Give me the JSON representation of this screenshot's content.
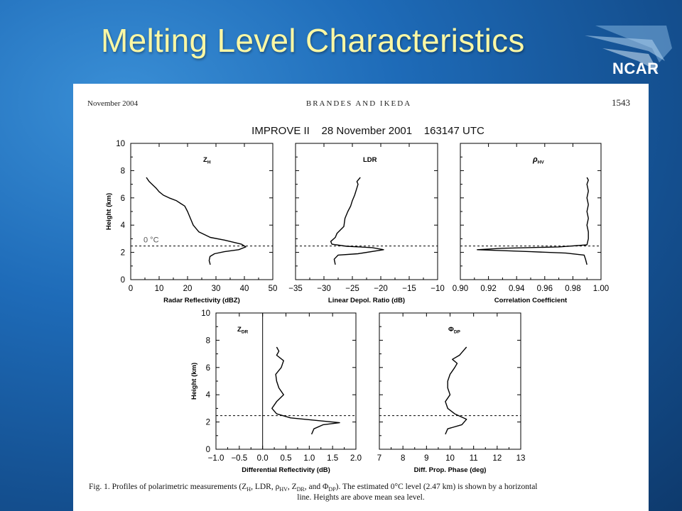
{
  "slide": {
    "title": "Melting Level Characteristics",
    "logo_text": "NCAR"
  },
  "paper": {
    "header_left": "November 2004",
    "header_center": "BRANDES AND IKEDA",
    "header_right": "1543",
    "figure_title": "IMPROVE II    28 November 2001    163147 UTC",
    "caption_line1": "Fig. 1. Profiles of polarimetric measurements (Z",
    "caption_full": "FIG. 1. Profiles of polarimetric measurements (ZH, LDR, ρHV, ZDR, and ΦDP). The estimated 0°C level (2.47 km) is shown by a horizontal line. Heights are above mean sea level.",
    "caption_a": "Fig. 1. Profiles of polarimetric measurements (Z",
    "caption_a_sub": "H",
    "caption_b": ", LDR, ρ",
    "caption_b_sub": "HV",
    "caption_c": ", Z",
    "caption_c_sub": "DR",
    "caption_d": ", and Φ",
    "caption_d_sub": "DP",
    "caption_e": "). The estimated 0°C level (2.47 km) is shown by a horizontal",
    "caption_line2": "line. Heights are above mean sea level."
  },
  "colors": {
    "title": "#fbf7a4",
    "background": "#1e6bb8",
    "plot_line": "#000000"
  },
  "chart_data": [
    {
      "type": "line",
      "panel_label": "Z",
      "panel_label_sub": "H",
      "xlabel": "Radar Reflectivity (dBZ)",
      "ylabel": "Height (km)",
      "xlim": [
        0,
        50
      ],
      "ylim": [
        0,
        10
      ],
      "x_ticks": [
        "0",
        "10",
        "20",
        "30",
        "40",
        "50"
      ],
      "y_ticks": [
        "0",
        "2",
        "4",
        "6",
        "8",
        "10"
      ],
      "melting_level_km": 2.47,
      "annotation": "0 °C",
      "series": [
        {
          "x": [
            28,
            27.6,
            27.9,
            29.5,
            33,
            38,
            40.5,
            39,
            33,
            28,
            24,
            22,
            21,
            20,
            19,
            17.5,
            16,
            13.5,
            11.5,
            10,
            9,
            7.5,
            6.5,
            6,
            5.5
          ],
          "y": [
            1.1,
            1.4,
            1.7,
            1.9,
            2.05,
            2.2,
            2.4,
            2.6,
            2.9,
            3.1,
            3.5,
            4.0,
            4.5,
            5.0,
            5.4,
            5.6,
            5.8,
            6.0,
            6.2,
            6.45,
            6.7,
            7.0,
            7.2,
            7.35,
            7.5
          ]
        }
      ]
    },
    {
      "type": "line",
      "panel_label": "LDR",
      "panel_label_sub": "",
      "xlabel": "Linear Depol. Ratio (dB)",
      "ylabel": "",
      "xlim": [
        -35,
        -10
      ],
      "ylim": [
        0,
        10
      ],
      "x_ticks": [
        "−35",
        "−30",
        "−25",
        "−20",
        "−15",
        "−10"
      ],
      "y_ticks": [],
      "melting_level_km": 2.47,
      "series": [
        {
          "x": [
            -28,
            -28.2,
            -27.5,
            -24,
            -19.5,
            -21.5,
            -26,
            -28.6,
            -28.8,
            -28,
            -27.7,
            -26.5,
            -26.3,
            -25.8,
            -25.3,
            -25.0,
            -24.6,
            -24.3,
            -24.0,
            -24.2,
            -23.6
          ],
          "y": [
            1.1,
            1.5,
            1.8,
            1.9,
            2.2,
            2.35,
            2.45,
            2.6,
            2.8,
            3.1,
            3.4,
            3.9,
            4.5,
            5.0,
            5.4,
            5.8,
            6.2,
            6.6,
            7.0,
            7.2,
            7.5
          ]
        }
      ]
    },
    {
      "type": "line",
      "panel_label": "ρ",
      "panel_label_sub": "HV",
      "xlabel": "Correlation Coefficient",
      "ylabel": "",
      "xlim": [
        0.9,
        1.0
      ],
      "ylim": [
        0,
        10
      ],
      "x_ticks": [
        "0.90",
        "0.92",
        "0.94",
        "0.96",
        "0.98",
        "1.00"
      ],
      "y_ticks": [],
      "melting_level_km": 2.47,
      "series": [
        {
          "x": [
            0.99,
            0.989,
            0.988,
            0.975,
            0.95,
            0.912,
            0.93,
            0.97,
            0.99,
            0.991,
            0.991,
            0.99,
            0.991,
            0.99,
            0.991,
            0.99,
            0.991,
            0.99,
            0.991,
            0.99
          ],
          "y": [
            1.1,
            1.5,
            1.8,
            1.95,
            2.05,
            2.2,
            2.3,
            2.4,
            2.55,
            3.0,
            3.5,
            4.0,
            4.5,
            5.0,
            5.5,
            6.0,
            6.5,
            7.0,
            7.3,
            7.5
          ]
        }
      ]
    },
    {
      "type": "line",
      "panel_label": "Z",
      "panel_label_sub": "DR",
      "xlabel": "Differential Reflectivity (dB)",
      "ylabel": "Height (km)",
      "xlim": [
        -1.0,
        2.0
      ],
      "ylim": [
        0,
        10
      ],
      "x_ticks": [
        "−1.0",
        "−0.5",
        "0.0",
        "0.5",
        "1.0",
        "1.5",
        "2.0"
      ],
      "y_ticks": [
        "0",
        "2",
        "4",
        "6",
        "8",
        "10"
      ],
      "melting_level_km": 2.47,
      "series": [
        {
          "x": [
            1.05,
            1.1,
            1.3,
            1.65,
            1.2,
            0.6,
            0.3,
            0.2,
            0.3,
            0.45,
            0.35,
            0.3,
            0.28,
            0.4,
            0.45,
            0.3,
            0.35,
            0.3
          ],
          "y": [
            1.1,
            1.5,
            1.8,
            1.95,
            2.1,
            2.3,
            2.6,
            3.0,
            3.5,
            4.0,
            4.5,
            5.0,
            5.5,
            6.0,
            6.5,
            6.9,
            7.2,
            7.5
          ]
        }
      ]
    },
    {
      "type": "line",
      "panel_label": "Φ",
      "panel_label_sub": "DP",
      "xlabel": "Diff. Prop. Phase (deg)",
      "ylabel": "",
      "xlim": [
        7,
        13
      ],
      "ylim": [
        0,
        10
      ],
      "x_ticks": [
        "7",
        "8",
        "9",
        "10",
        "11",
        "12",
        "13"
      ],
      "y_ticks": [],
      "melting_level_km": 2.47,
      "series": [
        {
          "x": [
            9.8,
            9.9,
            10.5,
            10.7,
            10.2,
            9.9,
            9.8,
            10.0,
            9.9,
            9.9,
            10.0,
            10.2,
            10.3,
            10.1,
            10.4,
            10.5,
            10.6,
            10.7
          ],
          "y": [
            1.1,
            1.5,
            1.8,
            2.2,
            2.6,
            3.0,
            3.5,
            4.0,
            4.5,
            5.0,
            5.5,
            6.0,
            6.3,
            6.6,
            6.9,
            7.1,
            7.3,
            7.5
          ]
        }
      ]
    }
  ]
}
